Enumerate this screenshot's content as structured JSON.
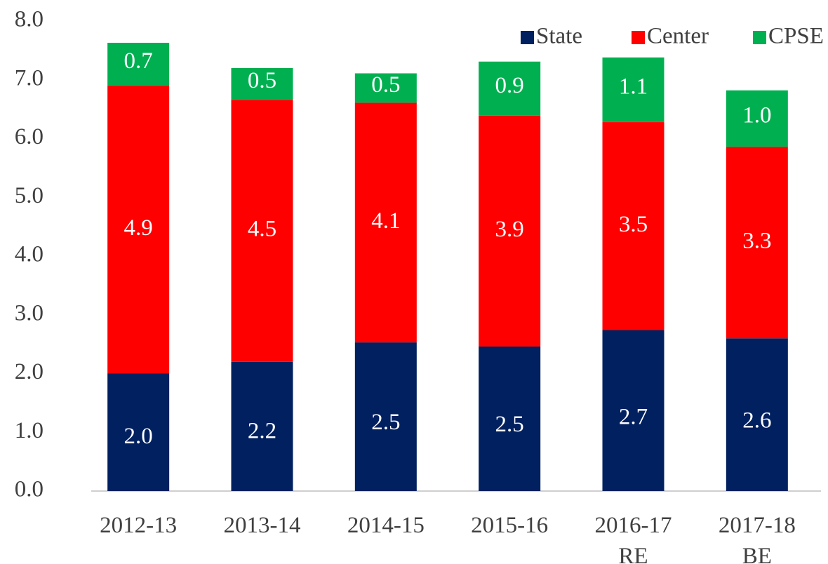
{
  "chart_data": {
    "type": "stacked_bar",
    "categories": [
      "2012-13",
      "2013-14",
      "2014-15",
      "2015-16",
      "2016-17\nRE",
      "2017-18\nBE"
    ],
    "series": [
      {
        "name": "State",
        "color": "#002060",
        "values": [
          2.0,
          2.2,
          2.53,
          2.46,
          2.74,
          2.6
        ],
        "value_labels": [
          "2.0",
          "2.2",
          "2.5",
          "2.5",
          "2.7",
          "2.6"
        ]
      },
      {
        "name": "Center",
        "color": "#ff0000",
        "values": [
          4.9,
          4.46,
          4.08,
          3.93,
          3.54,
          3.26
        ],
        "value_labels": [
          "4.9",
          "4.5",
          "4.1",
          "3.9",
          "3.5",
          "3.3"
        ]
      },
      {
        "name": "CPSE",
        "color": "#00b050",
        "values": [
          0.73,
          0.54,
          0.5,
          0.92,
          1.1,
          0.96
        ],
        "value_labels": [
          "0.7",
          "0.5",
          "0.5",
          "0.9",
          "1.1",
          "1.0"
        ]
      }
    ],
    "ylim": [
      0,
      8
    ],
    "yticks": [
      {
        "value": 0,
        "label": "0.0"
      },
      {
        "value": 1,
        "label": "1.0"
      },
      {
        "value": 2,
        "label": "2.0"
      },
      {
        "value": 3,
        "label": "3.0"
      },
      {
        "value": 4,
        "label": "4.0"
      },
      {
        "value": 5,
        "label": "5.0"
      },
      {
        "value": 6,
        "label": "6.0"
      },
      {
        "value": 7,
        "label": "7.0"
      },
      {
        "value": 8,
        "label": "8.0"
      }
    ],
    "legend": "top-right",
    "grid": false
  }
}
